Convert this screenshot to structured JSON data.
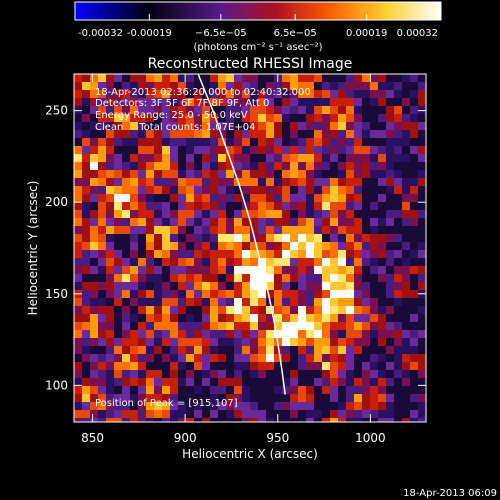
{
  "colorbar": {
    "ticks": [
      -0.00032,
      -0.00019,
      -6.5e-05,
      6.5e-05,
      0.00019,
      0.00032
    ],
    "tick_labels": [
      "-0.00032",
      "-0.00019",
      "−6.5e−05",
      "6.5e−05",
      "0.00019",
      "0.00032"
    ],
    "unit_label": "(photons cm⁻² s⁻¹ asec⁻²)",
    "colors": [
      "#0000ff",
      "#000000",
      "#5a1a8a",
      "#d01010",
      "#ff8000",
      "#ffe040",
      "#ffffff"
    ]
  },
  "chart_data": {
    "type": "heatmap",
    "title": "Reconstructed RHESSI Image",
    "xlabel": "Heliocentric X (arcsec)",
    "ylabel": "Heliocentric Y (arcsec)",
    "xlim": [
      840,
      1030
    ],
    "ylim": [
      80,
      270
    ],
    "xticks": [
      850,
      900,
      950,
      1000
    ],
    "yticks": [
      100,
      150,
      200,
      250
    ],
    "annotations": [
      "18-Apr-2013 02:36:20.000 to 02:40:32.000",
      "Detectors: 3F 5F 6F 7F 8F 9F, Att 0",
      "Energy Range: 25.0 - 50.0 keV",
      "Clean     Total counts: 1.07E+04"
    ],
    "peak_label": "Position of Peak = [915,107]",
    "peak_position": [
      915,
      107
    ],
    "solar_limb": [
      [
        907,
        270
      ],
      [
        915,
        250
      ],
      [
        922,
        230
      ],
      [
        929,
        210
      ],
      [
        935,
        190
      ],
      [
        940,
        170
      ],
      [
        945,
        150
      ],
      [
        949,
        130
      ],
      [
        952,
        110
      ],
      [
        954,
        95
      ]
    ]
  },
  "footer": {
    "timestamp": "18-Apr-2013 06:09"
  }
}
